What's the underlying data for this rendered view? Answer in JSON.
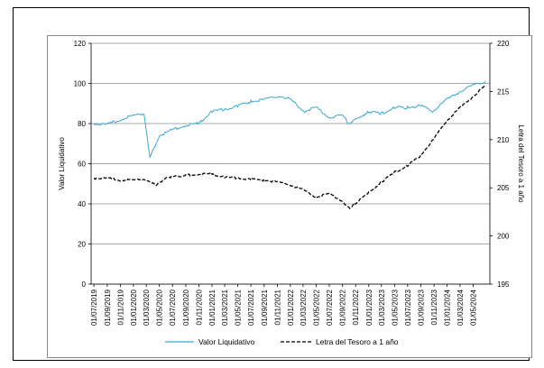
{
  "chart_data": {
    "type": "line",
    "title": "",
    "xlabel": "",
    "ylabel_left": "Valor Liquidativo",
    "ylabel_right": "Letra del Tesoro a 1 año",
    "ylim_left": [
      0,
      120
    ],
    "ylim_right": [
      195,
      220
    ],
    "yticks_left": [
      "0",
      "20",
      "40",
      "60",
      "80",
      "100",
      "120"
    ],
    "yticks_right": [
      "195",
      "200",
      "205",
      "210",
      "215",
      "220"
    ],
    "grid": "horizontal",
    "legend_position": "bottom",
    "x_tick_labels": [
      "01/07/2019",
      "01/09/2019",
      "01/11/2019",
      "01/01/2020",
      "01/03/2020",
      "01/05/2020",
      "01/07/2020",
      "01/09/2020",
      "01/11/2020",
      "01/01/2021",
      "01/03/2021",
      "01/05/2021",
      "01/07/2021",
      "01/09/2021",
      "01/11/2021",
      "01/01/2022",
      "01/03/2022",
      "01/05/2022",
      "01/07/2022",
      "01/09/2022",
      "01/11/2022",
      "01/01/2023",
      "01/03/2023",
      "01/05/2023",
      "01/07/2023",
      "01/09/2023",
      "01/11/2023",
      "01/01/2024",
      "01/03/2024",
      "01/05/2024"
    ],
    "series": [
      {
        "name": "Valor Liquidativo",
        "axis": "left",
        "color": "#3aa6d0",
        "style": "solid",
        "x": [
          "2019-07-01",
          "2019-09-01",
          "2019-11-01",
          "2020-01-01",
          "2020-02-20",
          "2020-03-18",
          "2020-05-01",
          "2020-07-01",
          "2020-09-01",
          "2020-11-01",
          "2021-01-01",
          "2021-03-01",
          "2021-05-01",
          "2021-07-01",
          "2021-09-01",
          "2021-11-15",
          "2022-01-01",
          "2022-03-08",
          "2022-05-01",
          "2022-07-01",
          "2022-09-01",
          "2022-10-01",
          "2022-11-01",
          "2023-01-01",
          "2023-03-01",
          "2023-05-01",
          "2023-07-01",
          "2023-09-01",
          "2023-10-25",
          "2024-01-01",
          "2024-03-01",
          "2024-05-01",
          "2024-06-28"
        ],
        "y": [
          80,
          79.5,
          82,
          84,
          85,
          63,
          74,
          77,
          79,
          80,
          86,
          87,
          89,
          91,
          92,
          94,
          92,
          86,
          88,
          83,
          84,
          80,
          82,
          86,
          85,
          88,
          88,
          89,
          86,
          92,
          96,
          99,
          101
        ]
      },
      {
        "name": "Letra del Tesoro a 1 año",
        "axis": "right",
        "color": "#000000",
        "style": "dashed",
        "x": [
          "2019-07-01",
          "2019-09-01",
          "2019-11-01",
          "2020-01-01",
          "2020-03-01",
          "2020-04-15",
          "2020-06-01",
          "2020-09-01",
          "2020-11-01",
          "2021-01-01",
          "2021-03-01",
          "2021-05-01",
          "2021-07-01",
          "2021-09-01",
          "2021-11-01",
          "2022-01-01",
          "2022-03-01",
          "2022-05-01",
          "2022-07-01",
          "2022-09-01",
          "2022-10-05",
          "2022-11-01",
          "2023-01-01",
          "2023-03-01",
          "2023-05-01",
          "2023-07-01",
          "2023-09-01",
          "2023-11-01",
          "2024-01-01",
          "2024-03-01",
          "2024-05-01",
          "2024-06-28"
        ],
        "y": [
          206,
          206,
          205.8,
          205.8,
          205.9,
          205.2,
          206.1,
          206.3,
          206.4,
          206.4,
          206.1,
          206,
          205.9,
          205.8,
          205.6,
          205.3,
          204.8,
          204,
          204.4,
          203.6,
          202.8,
          203.4,
          204.5,
          205.6,
          206.6,
          207.3,
          208.4,
          210.1,
          212,
          213.3,
          214.5,
          215.6
        ]
      }
    ]
  }
}
